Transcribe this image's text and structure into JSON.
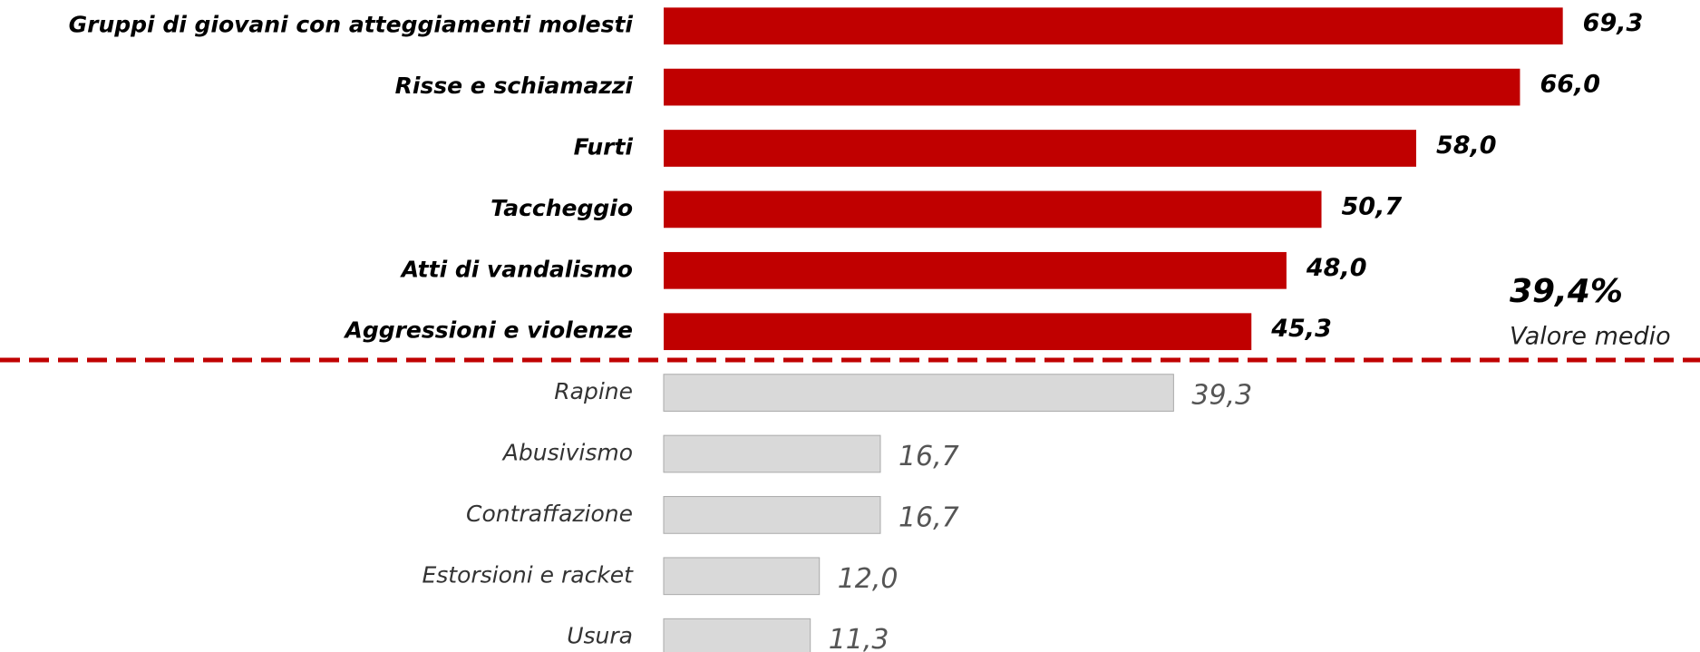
{
  "chart_data": {
    "type": "bar",
    "orientation": "horizontal",
    "categories": [
      "Gruppi di giovani con atteggiamenti molesti",
      "Risse e schiamazzi",
      "Furti",
      "Taccheggio",
      "Atti di vandalismo",
      "Aggressioni e violenze",
      "Rapine",
      "Abusivismo",
      "Contraffazione",
      "Estorsioni e racket",
      "Usura"
    ],
    "values": [
      69.3,
      66.0,
      58.0,
      50.7,
      48.0,
      45.3,
      39.3,
      16.7,
      16.7,
      12.0,
      11.3
    ],
    "value_labels": [
      "69,3",
      "66,0",
      "58,0",
      "50,7",
      "48,0",
      "45,3",
      "39,3",
      "16,7",
      "16,7",
      "12,0",
      "11,3"
    ],
    "colors": [
      "#c00000",
      "#c00000",
      "#c00000",
      "#c00000",
      "#c00000",
      "#c00000",
      "#d9d9d9",
      "#d9d9d9",
      "#d9d9d9",
      "#d9d9d9",
      "#d9d9d9"
    ],
    "average": {
      "value": 39.4,
      "label": "39,4%",
      "text": "Valore medio"
    }
  }
}
